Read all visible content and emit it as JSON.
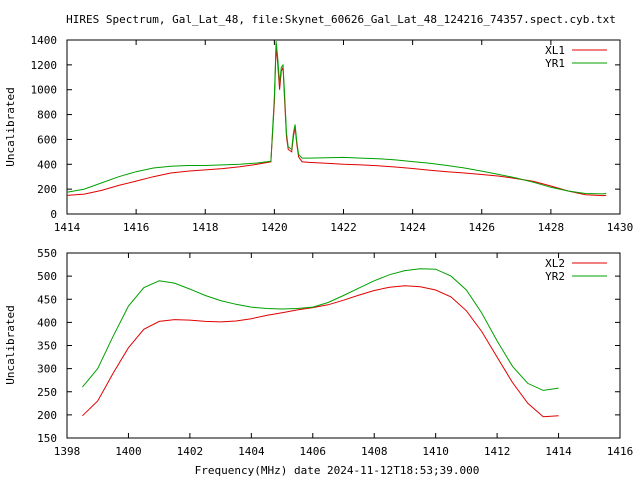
{
  "chart_data": [
    {
      "type": "line",
      "title": "HIRES Spectrum, Gal_Lat_48, file:Skynet_60626_Gal_Lat_48_124216_74357.spect.cyb.txt",
      "xlabel": "",
      "ylabel": "Uncalibrated",
      "xlim": [
        1414,
        1430
      ],
      "ylim": [
        0,
        1400
      ],
      "xticks": [
        "1414",
        "1416",
        "1418",
        "1420",
        "1422",
        "1424",
        "1426",
        "1428",
        "1430"
      ],
      "yticks": [
        "0",
        "200",
        "400",
        "600",
        "800",
        "1000",
        "1200",
        "1400"
      ],
      "legend_position": "top-right",
      "grid": false,
      "series": [
        {
          "name": "XL1",
          "color": "#e00000",
          "x": [
            1414.0,
            1414.5,
            1415.0,
            1415.5,
            1416.0,
            1416.5,
            1417.0,
            1417.5,
            1418.0,
            1418.5,
            1419.0,
            1419.5,
            1419.9,
            1420.0,
            1420.05,
            1420.1,
            1420.15,
            1420.2,
            1420.25,
            1420.3,
            1420.35,
            1420.4,
            1420.5,
            1420.55,
            1420.6,
            1420.65,
            1420.7,
            1420.8,
            1421.0,
            1421.5,
            1422.0,
            1422.5,
            1423.0,
            1423.5,
            1424.0,
            1424.5,
            1425.0,
            1425.5,
            1426.0,
            1426.5,
            1427.0,
            1427.5,
            1428.0,
            1428.5,
            1429.0,
            1429.5,
            1429.6
          ],
          "values": [
            150,
            160,
            190,
            230,
            265,
            300,
            330,
            345,
            355,
            365,
            380,
            400,
            420,
            900,
            1360,
            1200,
            1000,
            1150,
            1180,
            900,
            620,
            520,
            500,
            620,
            700,
            560,
            460,
            420,
            415,
            408,
            400,
            395,
            388,
            378,
            366,
            352,
            340,
            330,
            318,
            305,
            285,
            262,
            225,
            185,
            155,
            148,
            150
          ]
        },
        {
          "name": "YR1",
          "color": "#00a000",
          "x": [
            1414.0,
            1414.5,
            1415.0,
            1415.5,
            1416.0,
            1416.5,
            1417.0,
            1417.5,
            1418.0,
            1418.5,
            1419.0,
            1419.5,
            1419.9,
            1420.0,
            1420.05,
            1420.1,
            1420.15,
            1420.2,
            1420.25,
            1420.3,
            1420.35,
            1420.4,
            1420.5,
            1420.55,
            1420.6,
            1420.65,
            1420.7,
            1420.8,
            1421.0,
            1421.5,
            1422.0,
            1422.5,
            1423.0,
            1423.5,
            1424.0,
            1424.5,
            1425.0,
            1425.5,
            1426.0,
            1426.5,
            1427.0,
            1427.5,
            1428.0,
            1428.5,
            1429.0,
            1429.5,
            1429.6
          ],
          "values": [
            175,
            200,
            250,
            300,
            340,
            370,
            385,
            390,
            390,
            395,
            400,
            410,
            425,
            950,
            1390,
            1250,
            1050,
            1180,
            1200,
            950,
            650,
            540,
            520,
            650,
            720,
            580,
            480,
            450,
            450,
            452,
            455,
            450,
            445,
            435,
            422,
            408,
            390,
            370,
            345,
            318,
            290,
            255,
            215,
            185,
            165,
            162,
            165
          ]
        }
      ]
    },
    {
      "type": "line",
      "title": "",
      "xlabel": "Frequency(MHz) date 2024-11-12T18:53;39.000",
      "ylabel": "Uncalibrated",
      "xlim": [
        1398,
        1416
      ],
      "ylim": [
        150,
        550
      ],
      "xticks": [
        "1398",
        "1400",
        "1402",
        "1404",
        "1406",
        "1408",
        "1410",
        "1412",
        "1414",
        "1416"
      ],
      "yticks": [
        "150",
        "200",
        "250",
        "300",
        "350",
        "400",
        "450",
        "500",
        "550"
      ],
      "legend_position": "top-right",
      "grid": false,
      "series": [
        {
          "name": "XL2",
          "color": "#e00000",
          "x": [
            1398.5,
            1399.0,
            1399.5,
            1400.0,
            1400.5,
            1401.0,
            1401.5,
            1402.0,
            1402.5,
            1403.0,
            1403.5,
            1404.0,
            1404.5,
            1405.0,
            1405.5,
            1406.0,
            1406.5,
            1407.0,
            1407.5,
            1408.0,
            1408.5,
            1409.0,
            1409.5,
            1410.0,
            1410.5,
            1411.0,
            1411.5,
            1412.0,
            1412.5,
            1413.0,
            1413.5,
            1414.0
          ],
          "values": [
            198,
            230,
            290,
            345,
            385,
            402,
            406,
            405,
            402,
            401,
            403,
            408,
            415,
            421,
            427,
            432,
            438,
            448,
            459,
            469,
            476,
            479,
            477,
            470,
            455,
            425,
            380,
            325,
            270,
            225,
            196,
            198
          ]
        },
        {
          "name": "YR2",
          "color": "#00a000",
          "x": [
            1398.5,
            1399.0,
            1399.5,
            1400.0,
            1400.5,
            1401.0,
            1401.5,
            1402.0,
            1402.5,
            1403.0,
            1403.5,
            1404.0,
            1404.5,
            1405.0,
            1405.5,
            1406.0,
            1406.5,
            1407.0,
            1407.5,
            1408.0,
            1408.5,
            1409.0,
            1409.5,
            1410.0,
            1410.5,
            1411.0,
            1411.5,
            1412.0,
            1412.5,
            1413.0,
            1413.5,
            1414.0
          ],
          "values": [
            260,
            300,
            370,
            435,
            475,
            490,
            485,
            472,
            458,
            447,
            439,
            433,
            430,
            429,
            430,
            433,
            443,
            458,
            474,
            490,
            503,
            512,
            516,
            515,
            500,
            470,
            420,
            360,
            305,
            268,
            253,
            258
          ]
        }
      ]
    }
  ]
}
